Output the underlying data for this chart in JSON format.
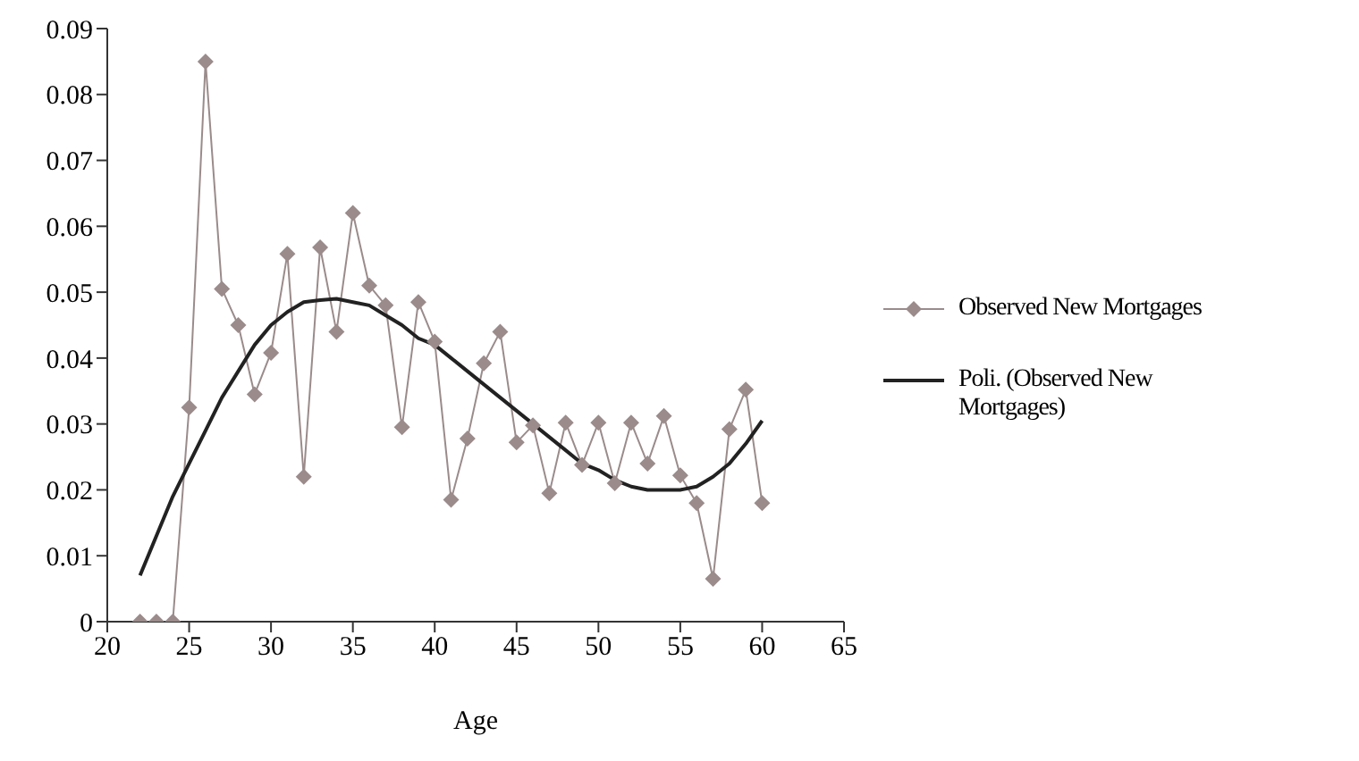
{
  "chart_data": {
    "type": "line",
    "xlabel": "Age",
    "x": [
      22,
      23,
      24,
      25,
      26,
      27,
      28,
      29,
      30,
      31,
      32,
      33,
      34,
      35,
      36,
      37,
      38,
      39,
      40,
      41,
      42,
      43,
      44,
      45,
      46,
      47,
      48,
      49,
      50,
      51,
      52,
      53,
      54,
      55,
      56,
      57,
      58,
      59,
      60
    ],
    "series": [
      {
        "name": "Observed New Mortgages",
        "color": "#9b8b8b",
        "marker": "diamond",
        "values": [
          0,
          0,
          0,
          0.0325,
          0.085,
          0.0505,
          0.045,
          0.0345,
          0.0408,
          0.0558,
          0.022,
          0.0568,
          0.044,
          0.062,
          0.051,
          0.048,
          0.0295,
          0.0485,
          0.0425,
          0.0185,
          0.0278,
          0.0392,
          0.044,
          0.0272,
          0.0298,
          0.0195,
          0.0302,
          0.0238,
          0.0302,
          0.021,
          0.0302,
          0.024,
          0.0312,
          0.0222,
          0.018,
          0.0065,
          0.0292,
          0.0352,
          0.018
        ]
      },
      {
        "name": "Poli. (Observed New Mortgages)",
        "color": "#222222",
        "marker": "none",
        "values": [
          0.007,
          0.013,
          0.019,
          0.024,
          0.029,
          0.034,
          0.038,
          0.042,
          0.045,
          0.047,
          0.0485,
          0.0488,
          0.049,
          0.0485,
          0.048,
          0.0465,
          0.045,
          0.043,
          0.042,
          0.04,
          0.038,
          0.036,
          0.034,
          0.032,
          0.03,
          0.028,
          0.026,
          0.024,
          0.023,
          0.0215,
          0.0205,
          0.02,
          0.02,
          0.02,
          0.0205,
          0.022,
          0.024,
          0.027,
          0.0305
        ]
      }
    ],
    "xlim": [
      20,
      65
    ],
    "xticks": [
      20,
      25,
      30,
      35,
      40,
      45,
      50,
      55,
      60,
      65
    ],
    "ylim": [
      0,
      0.09
    ],
    "yticks": [
      0,
      0.01,
      0.02,
      0.03,
      0.04,
      0.05,
      0.06,
      0.07,
      0.08,
      0.09
    ],
    "grid": false,
    "legend": "right"
  }
}
